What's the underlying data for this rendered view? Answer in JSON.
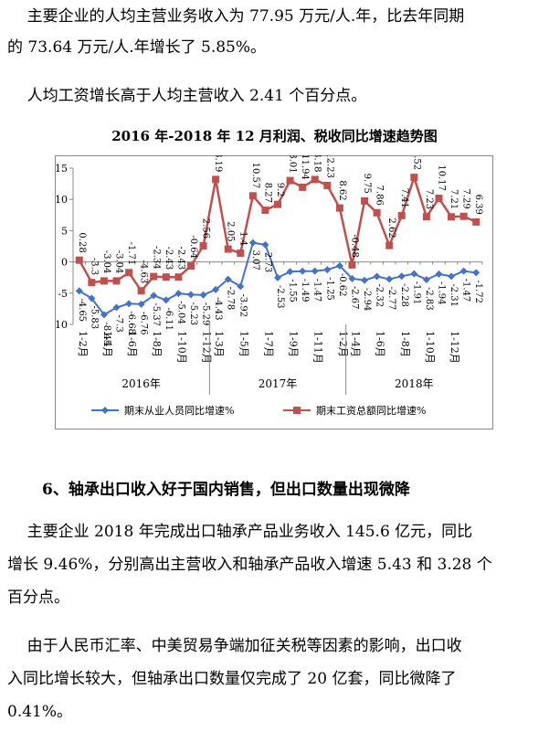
{
  "text": {
    "p1_line1": "主要企业的人均主营业务收入为 77.95 万元/人.年，比去年同期",
    "p1_line2": "的 73.64 万元/人.年增长了 5.85%。",
    "p2": "人均工资增长高于人均主营收入 2.41 个百分点。",
    "section6_heading": "6、轴承出口收入好于国内销售，但出口数量出现微降",
    "p3_line1": "主要企业 2018 年完成出口轴承产品业务收入 145.6 亿元，同比",
    "p3_line2": "增长 9.46%，分别高出主营收入和轴承产品收入增速 5.43 和 3.28 个",
    "p3_line3": "百分点。",
    "p4_line1": "由于人民币汇率、中美贸易争端加征关税等因素的影响，出口收",
    "p4_line2": "入同比增长较大，但轴承出口数量仅完成了  20  亿套，同比微降了",
    "p4_line3": "0.41%。"
  },
  "chart_data": {
    "type": "line",
    "title": "2016 年-2018 年 12 月利润、税收同比增速趋势图",
    "ylim": [
      -10,
      15
    ],
    "yticks": [
      "15",
      "10",
      "5",
      "0",
      "-5",
      "-10"
    ],
    "x": [
      "1-2月",
      "1-3月",
      "1-4月",
      "1-5月",
      "1-6月",
      "1-7月",
      "1-8月",
      "1-9月",
      "1-10月",
      "1-11月",
      "1-12月",
      "1-2月",
      "1-3月",
      "1-4月",
      "1-5月",
      "1-6月",
      "1-7月",
      "1-8月",
      "1-9月",
      "1-10月",
      "1-11月",
      "1-12月",
      "1-2月",
      "1-3月",
      "1-4月",
      "1-5月",
      "1-6月",
      "1-7月",
      "1-8月",
      "1-9月",
      "1-10月",
      "1-11月",
      "1-12月"
    ],
    "xtick_labels": [
      "1-2月",
      "1-4月",
      "1-6月",
      "1-8月",
      "1-10月",
      "1-12月",
      "1-3月",
      "1-5月",
      "1-7月",
      "1-9月",
      "1-11月",
      "1-2月",
      "1-4月",
      "1-6月",
      "1-8月",
      "1-10月",
      "1-12月"
    ],
    "groups": [
      {
        "label": "2016年",
        "start": 0,
        "end": 10
      },
      {
        "label": "2017年",
        "start": 11,
        "end": 21
      },
      {
        "label": "2018年",
        "start": 22,
        "end": 32
      }
    ],
    "series": [
      {
        "name": "期末从业人员同比增速%",
        "color": "#4472c4",
        "values": [
          -4.65,
          -5.83,
          -8.45,
          -7.3,
          -6.68,
          -6.76,
          -5.37,
          -6.11,
          -5.04,
          -5.23,
          -5.29,
          -4.43,
          -2.78,
          -3.92,
          3.07,
          2.73,
          -2.53,
          -1.55,
          -1.49,
          -1.47,
          -1.25,
          -0.62,
          -2.67,
          -2.94,
          -2.32,
          -2.77,
          -2.28,
          -1.91,
          -2.83,
          -1.94,
          -2.31,
          -1.47,
          -1.72
        ],
        "labels": [
          "-4.65",
          "-5.83",
          "-8.45",
          "-7.3",
          "-6.68",
          "-6.76",
          "-5.37",
          "-6.11",
          "-5.04",
          "-5.23",
          "-5.29",
          "-4.43",
          "-2.78",
          "-3.92",
          "3.07",
          "2.73",
          "-2.53",
          "-1.55",
          "-1.49",
          "-1.47",
          "-1.25",
          "-0.62",
          "-2.67",
          "-2.94",
          "-2.32",
          "-2.77",
          "-2.28",
          "-1.91",
          "-2.83",
          "-1.94",
          "-2.31",
          "-1.47",
          "-1.72"
        ]
      },
      {
        "name": "期末工资总额同比增速%",
        "color": "#c0504d",
        "values": [
          0.28,
          -3.3,
          -3.04,
          -3.04,
          -1.71,
          -4.63,
          -2.34,
          -2.43,
          -2.43,
          -0.64,
          2.56,
          13.19,
          2.05,
          1.4,
          10.57,
          8.27,
          9.2,
          13.01,
          11.94,
          13.18,
          12.23,
          8.62,
          -0.48,
          9.75,
          7.86,
          2.62,
          7.41,
          13.52,
          7.23,
          10.17,
          7.21,
          7.29,
          6.39
        ],
        "labels": [
          "0.28",
          "-3.3",
          "-3.04",
          "-3.04",
          "-1.71",
          "-4.63",
          "-2.34",
          "-2.43",
          "-2.43",
          "-0.64",
          "2.56",
          "13.19",
          "2.05",
          "1.4",
          "10.57",
          "8.27",
          "9.2",
          "13.01",
          "11.94",
          "13.18",
          "12.23",
          "8.62",
          "-0.48",
          "9.75",
          "7.86",
          "2.62",
          "7.41",
          "13.52",
          "7.23",
          "10.17",
          "7.21",
          "7.29",
          "6.39"
        ]
      }
    ],
    "legend_position": "bottom",
    "grid": false
  }
}
